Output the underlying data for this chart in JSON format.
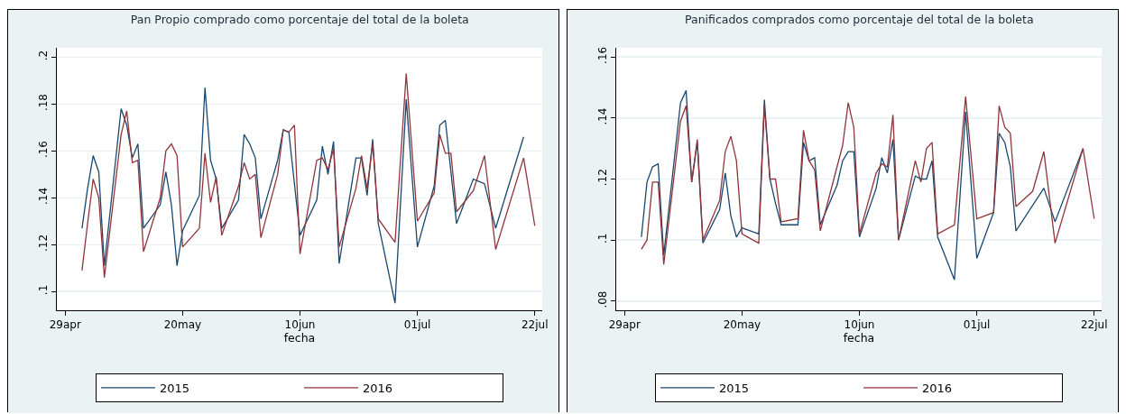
{
  "chart_data": [
    {
      "type": "line",
      "title": "Pan Propio comprado como porcentaje del total de la boleta",
      "xlabel": "fecha",
      "xlim": [
        "--04-27T12:00",
        "--07-23T08:00"
      ],
      "xticks": [
        {
          "value": "--04-29",
          "label": "29apr"
        },
        {
          "value": "--05-20",
          "label": "20may"
        },
        {
          "value": "--06-10",
          "label": "10jun"
        },
        {
          "value": "--07-01",
          "label": "01jul"
        },
        {
          "value": "--07-22",
          "label": "22jul"
        }
      ],
      "ylim": [
        0.092,
        0.204
      ],
      "yticks": [
        {
          "value": 0.1,
          "label": ".1"
        },
        {
          "value": 0.12,
          "label": ".12"
        },
        {
          "value": 0.14,
          "label": ".14"
        },
        {
          "value": 0.16,
          "label": ".16"
        },
        {
          "value": 0.18,
          "label": ".18"
        },
        {
          "value": 0.2,
          "label": ".2"
        }
      ],
      "grid": "y",
      "legend": "bottom",
      "series": [
        {
          "name": "2015",
          "color": "#1a476f",
          "x": [
            "--05-02",
            "--05-03",
            "--05-04",
            "--05-05",
            "--05-06",
            "--05-09",
            "--05-10",
            "--05-11",
            "--05-12",
            "--05-13",
            "--05-16",
            "--05-17",
            "--05-18",
            "--05-19",
            "--05-20",
            "--05-23",
            "--05-24",
            "--05-25",
            "--05-26",
            "--05-27",
            "--05-30",
            "--05-31",
            "--06-01",
            "--06-02",
            "--06-03",
            "--06-06",
            "--06-07",
            "--06-08",
            "--06-10",
            "--06-13",
            "--06-14",
            "--06-15",
            "--06-16",
            "--06-17",
            "--06-20",
            "--06-21",
            "--06-22",
            "--06-23",
            "--06-24",
            "--06-27",
            "--06-29",
            "--07-01",
            "--07-04",
            "--07-05",
            "--07-06",
            "--07-08",
            "--07-11",
            "--07-12",
            "--07-13",
            "--07-15",
            "--07-20"
          ],
          "values": [
            0.127,
            0.144,
            0.158,
            0.151,
            0.111,
            0.178,
            0.171,
            0.157,
            0.163,
            0.127,
            0.137,
            0.151,
            0.137,
            0.111,
            0.126,
            0.141,
            0.187,
            0.156,
            0.148,
            0.127,
            0.139,
            0.167,
            0.163,
            0.157,
            0.131,
            0.156,
            0.169,
            0.168,
            0.124,
            0.139,
            0.162,
            0.15,
            0.164,
            0.112,
            0.157,
            0.157,
            0.141,
            0.165,
            0.129,
            0.095,
            0.182,
            0.119,
            0.145,
            0.171,
            0.173,
            0.129,
            0.148,
            0.147,
            0.146,
            0.127,
            0.166
          ]
        },
        {
          "name": "2016",
          "color": "#90353b",
          "x": [
            "--05-02",
            "--05-03",
            "--05-04",
            "--05-05",
            "--05-06",
            "--05-09",
            "--05-10",
            "--05-11",
            "--05-12",
            "--05-13",
            "--05-16",
            "--05-17",
            "--05-18",
            "--05-19",
            "--05-20",
            "--05-23",
            "--05-24",
            "--05-25",
            "--05-26",
            "--05-27",
            "--05-30",
            "--05-31",
            "--06-01",
            "--06-02",
            "--06-03",
            "--06-06",
            "--06-07",
            "--06-08",
            "--06-09",
            "--06-10",
            "--06-13",
            "--06-14",
            "--06-15",
            "--06-16",
            "--06-17",
            "--06-20",
            "--06-21",
            "--06-22",
            "--06-23",
            "--06-24",
            "--06-27",
            "--06-29",
            "--07-01",
            "--07-04",
            "--07-05",
            "--07-06",
            "--07-07",
            "--07-08",
            "--07-11",
            "--07-13",
            "--07-15",
            "--07-20",
            "--07-22"
          ],
          "values": [
            0.109,
            0.129,
            0.148,
            0.14,
            0.106,
            0.167,
            0.177,
            0.155,
            0.156,
            0.117,
            0.14,
            0.16,
            0.163,
            0.158,
            0.119,
            0.127,
            0.159,
            0.138,
            0.149,
            0.124,
            0.145,
            0.155,
            0.148,
            0.15,
            0.123,
            0.15,
            0.169,
            0.168,
            0.171,
            0.116,
            0.156,
            0.157,
            0.152,
            0.161,
            0.119,
            0.144,
            0.158,
            0.144,
            0.163,
            0.131,
            0.121,
            0.193,
            0.13,
            0.142,
            0.167,
            0.159,
            0.159,
            0.134,
            0.143,
            0.158,
            0.118,
            0.157,
            0.128
          ]
        }
      ]
    },
    {
      "type": "line",
      "title": "Panificados comprados como porcentaje del total de la boleta",
      "xlabel": "fecha",
      "xlim": [
        "--04-27T12:00",
        "--07-23T08:00"
      ],
      "xticks": [
        {
          "value": "--04-29",
          "label": "29apr"
        },
        {
          "value": "--05-20",
          "label": "20may"
        },
        {
          "value": "--06-10",
          "label": "10jun"
        },
        {
          "value": "--07-01",
          "label": "01jul"
        },
        {
          "value": "--07-22",
          "label": "22jul"
        }
      ],
      "ylim": [
        0.077,
        0.163
      ],
      "yticks": [
        {
          "value": 0.08,
          "label": ".08"
        },
        {
          "value": 0.1,
          "label": ".1"
        },
        {
          "value": 0.12,
          "label": ".12"
        },
        {
          "value": 0.14,
          "label": ".14"
        },
        {
          "value": 0.16,
          "label": ".16"
        }
      ],
      "grid": "y",
      "legend": "bottom",
      "series": [
        {
          "name": "2015",
          "color": "#1a476f",
          "x": [
            "--05-02",
            "--05-03",
            "--05-04",
            "--05-05",
            "--05-06",
            "--05-09",
            "--05-10",
            "--05-11",
            "--05-12",
            "--05-13",
            "--05-16",
            "--05-17",
            "--05-18",
            "--05-19",
            "--05-20",
            "--05-23",
            "--05-24",
            "--05-25",
            "--05-26",
            "--05-27",
            "--05-30",
            "--05-31",
            "--06-01",
            "--06-02",
            "--06-03",
            "--06-06",
            "--06-07",
            "--06-08",
            "--06-09",
            "--06-10",
            "--06-13",
            "--06-14",
            "--06-15",
            "--06-16",
            "--06-17",
            "--06-20",
            "--06-21",
            "--06-22",
            "--06-23",
            "--06-24",
            "--06-27",
            "--06-29",
            "--07-01",
            "--07-04",
            "--07-05",
            "--07-06",
            "--07-07",
            "--07-08",
            "--07-13",
            "--07-15",
            "--07-20"
          ],
          "values": [
            0.101,
            0.119,
            0.124,
            0.125,
            0.095,
            0.145,
            0.149,
            0.119,
            0.132,
            0.099,
            0.11,
            0.122,
            0.108,
            0.101,
            0.104,
            0.102,
            0.146,
            0.12,
            0.112,
            0.105,
            0.105,
            0.132,
            0.126,
            0.127,
            0.105,
            0.118,
            0.126,
            0.129,
            0.129,
            0.101,
            0.117,
            0.127,
            0.122,
            0.133,
            0.1,
            0.121,
            0.12,
            0.12,
            0.126,
            0.101,
            0.087,
            0.142,
            0.094,
            0.109,
            0.135,
            0.132,
            0.124,
            0.103,
            0.117,
            0.106,
            0.13
          ]
        },
        {
          "name": "2016",
          "color": "#90353b",
          "x": [
            "--05-02",
            "--05-03",
            "--05-04",
            "--05-05",
            "--05-06",
            "--05-09",
            "--05-10",
            "--05-11",
            "--05-12",
            "--05-13",
            "--05-16",
            "--05-17",
            "--05-18",
            "--05-19",
            "--05-20",
            "--05-23",
            "--05-24",
            "--05-25",
            "--05-26",
            "--05-27",
            "--05-30",
            "--05-31",
            "--06-01",
            "--06-02",
            "--06-03",
            "--06-06",
            "--06-07",
            "--06-08",
            "--06-09",
            "--06-10",
            "--06-13",
            "--06-14",
            "--06-15",
            "--06-16",
            "--06-17",
            "--06-20",
            "--06-21",
            "--06-22",
            "--06-23",
            "--06-24",
            "--06-27",
            "--06-29",
            "--07-01",
            "--07-04",
            "--07-05",
            "--07-06",
            "--07-07",
            "--07-08",
            "--07-11",
            "--07-13",
            "--07-15",
            "--07-20",
            "--07-22"
          ],
          "values": [
            0.097,
            0.1,
            0.119,
            0.119,
            0.092,
            0.139,
            0.144,
            0.119,
            0.133,
            0.1,
            0.113,
            0.129,
            0.134,
            0.126,
            0.102,
            0.099,
            0.144,
            0.12,
            0.12,
            0.106,
            0.107,
            0.136,
            0.126,
            0.123,
            0.103,
            0.124,
            0.131,
            0.145,
            0.137,
            0.102,
            0.122,
            0.125,
            0.124,
            0.141,
            0.1,
            0.126,
            0.119,
            0.13,
            0.132,
            0.102,
            0.105,
            0.147,
            0.107,
            0.109,
            0.144,
            0.137,
            0.135,
            0.111,
            0.116,
            0.129,
            0.099,
            0.13,
            0.107
          ]
        }
      ]
    }
  ]
}
